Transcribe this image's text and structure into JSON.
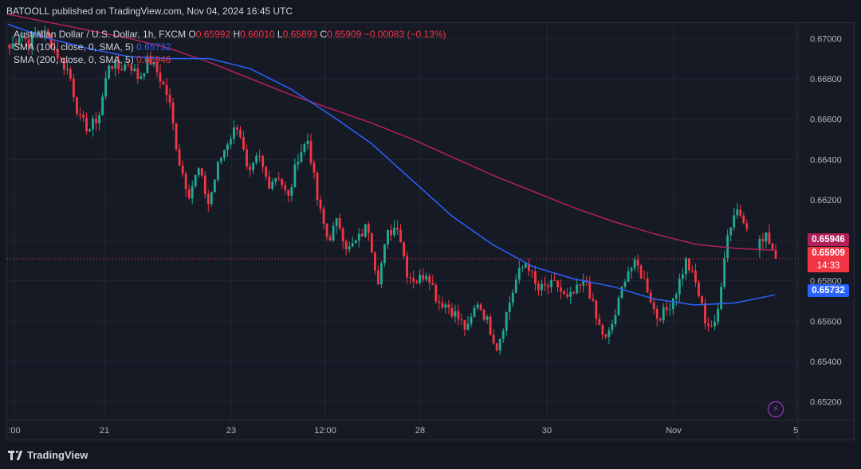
{
  "header": {
    "publisher": "BATOOLL published on TradingView.com, Nov 04, 2024 16:45 UTC"
  },
  "legend": {
    "title": "Australian Dollar / U.S. Dollar, 1h, FXCM",
    "o_label": "O",
    "o_value": "0.65992",
    "h_label": "H",
    "h_value": "0.66010",
    "l_label": "L",
    "l_value": "0.65893",
    "c_label": "C",
    "c_value": "0.65909",
    "change": "−0.00083 (−0.13%)",
    "sma100_label": "SMA (100, close, 0, SMA, 5)",
    "sma100_value": "0.65732",
    "sma200_label": "SMA (200, close, 0, SMA, 5)",
    "sma200_value": "0.65946"
  },
  "badges": {
    "sma200": "0.65946",
    "price": "0.65909",
    "countdown": "14:33",
    "sma100": "0.65732"
  },
  "footer": {
    "brand": "TradingView"
  },
  "colors": {
    "up": "#22ab94",
    "down": "#f23645",
    "sma100": "#2962ff",
    "sma200": "#b2205a"
  },
  "chart_data": {
    "type": "candlestick",
    "title": "Australian Dollar / U.S. Dollar, 1h, FXCM",
    "ylim": [
      0.6512,
      0.6708
    ],
    "yticks": [
      "0.67000",
      "0.66800",
      "0.66600",
      "0.66400",
      "0.66200",
      "0.66000",
      "0.65800",
      "0.65600",
      "0.65400",
      "0.65200"
    ],
    "xticks": [
      ":00",
      "21",
      "23",
      "12:00",
      "28",
      "30",
      "Nov",
      "5"
    ],
    "current_price": 0.65909,
    "price_path": [
      0.6695,
      0.6702,
      0.6698,
      0.6705,
      0.67,
      0.669,
      0.6683,
      0.666,
      0.6655,
      0.6662,
      0.6688,
      0.6685,
      0.6688,
      0.668,
      0.669,
      0.6682,
      0.667,
      0.664,
      0.6623,
      0.6635,
      0.6618,
      0.6638,
      0.665,
      0.6658,
      0.663,
      0.6642,
      0.6628,
      0.6633,
      0.662,
      0.6642,
      0.665,
      0.6618,
      0.66,
      0.661,
      0.6595,
      0.66,
      0.6608,
      0.658,
      0.6603,
      0.6608,
      0.6583,
      0.658,
      0.6585,
      0.657,
      0.6568,
      0.6562,
      0.6555,
      0.657,
      0.656,
      0.6547,
      0.6565,
      0.6582,
      0.659,
      0.6575,
      0.6577,
      0.6578,
      0.657,
      0.6575,
      0.658,
      0.656,
      0.655,
      0.6565,
      0.6585,
      0.6588,
      0.6578,
      0.6562,
      0.6565,
      0.6575,
      0.659,
      0.6578,
      0.6559,
      0.6557,
      0.66,
      0.6616,
      0.661,
      0.6594,
      0.6605,
      0.6591
    ],
    "sma100_path": [
      0.6707,
      0.67,
      0.6695,
      0.6691,
      0.669,
      0.669,
      0.6685,
      0.6675,
      0.6662,
      0.6648,
      0.663,
      0.6612,
      0.6598,
      0.6587,
      0.6581,
      0.6577,
      0.6571,
      0.6568,
      0.6569,
      0.6573
    ],
    "sma200_path": [
      0.6712,
      0.6708,
      0.6704,
      0.67,
      0.6695,
      0.6688,
      0.668,
      0.6672,
      0.6665,
      0.6658,
      0.665,
      0.6641,
      0.6632,
      0.6624,
      0.6616,
      0.6609,
      0.6603,
      0.6598,
      0.6596,
      0.6595
    ]
  }
}
